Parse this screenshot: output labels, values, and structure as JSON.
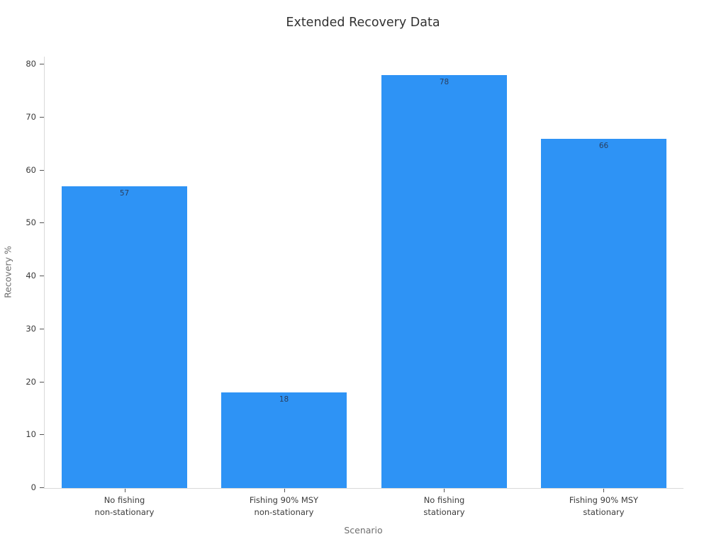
{
  "chart_data": {
    "type": "bar",
    "title": "Extended Recovery Data",
    "xlabel": "Scenario",
    "ylabel": "Recovery %",
    "categories": [
      "No fishing\nnon-stationary",
      "Fishing 90% MSY\nnon-stationary",
      "No fishing\nstationary",
      "Fishing 90% MSY\nstationary"
    ],
    "values": [
      57,
      18,
      78,
      66
    ],
    "bar_labels": [
      "57",
      "18",
      "78",
      "66"
    ],
    "ylim": [
      0,
      80
    ],
    "yticks": [
      0,
      10,
      20,
      30,
      40,
      50,
      60,
      70,
      80
    ],
    "grid": false,
    "legend": "none",
    "bar_color": "#2e93f5"
  },
  "colors": {
    "background": "#ffffff",
    "bar": "#2e93f5",
    "axis_line": "#d9d9d9",
    "tick_mark": "#555555",
    "tick_label": "#3b3b3b",
    "axis_title": "#6e6e6e",
    "title": "#323232",
    "value_label": "#2a3f5f"
  }
}
